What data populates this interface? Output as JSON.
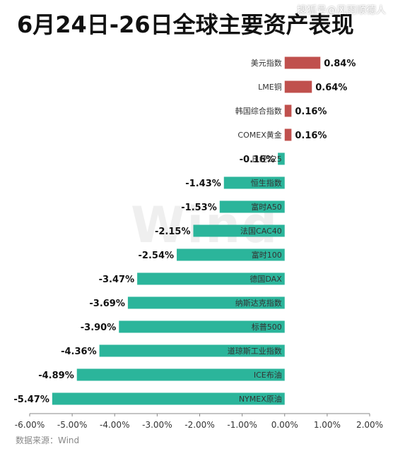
{
  "title": "6月24日-26日全球主要资产表现",
  "watermark": "搜狐号@风雨顺德人",
  "source": "数据来源：Wind",
  "logo_text": "Wind",
  "colors": {
    "positive": "#c0504d",
    "negative": "#2bb59b",
    "axis": "#888888"
  },
  "chart_data": {
    "type": "bar",
    "orientation": "horizontal",
    "categories": [
      "美元指数",
      "LME铜",
      "韩国综合指数",
      "COMEX黄金",
      "日经225",
      "恒生指数",
      "富时A50",
      "法国CAC40",
      "富时100",
      "德国DAX",
      "纳斯达克指数",
      "标普500",
      "道琼斯工业指数",
      "ICE布油",
      "NYMEX原油"
    ],
    "values": [
      0.84,
      0.64,
      0.16,
      0.16,
      -0.16,
      -1.43,
      -1.53,
      -2.15,
      -2.54,
      -3.47,
      -3.69,
      -3.9,
      -4.36,
      -4.89,
      -5.47
    ],
    "value_labels": [
      "0.84%",
      "0.64%",
      "0.16%",
      "0.16%",
      "-0.16%",
      "-1.43%",
      "-1.53%",
      "-2.15%",
      "-2.54%",
      "-3.47%",
      "-3.69%",
      "-3.90%",
      "-4.36%",
      "-4.89%",
      "-5.47%"
    ],
    "xlim": [
      -6.0,
      2.0
    ],
    "xticks": [
      "-6.00%",
      "-5.00%",
      "-4.00%",
      "-3.00%",
      "-2.00%",
      "-1.00%",
      "0.00%",
      "1.00%",
      "2.00%"
    ],
    "grid": false
  }
}
